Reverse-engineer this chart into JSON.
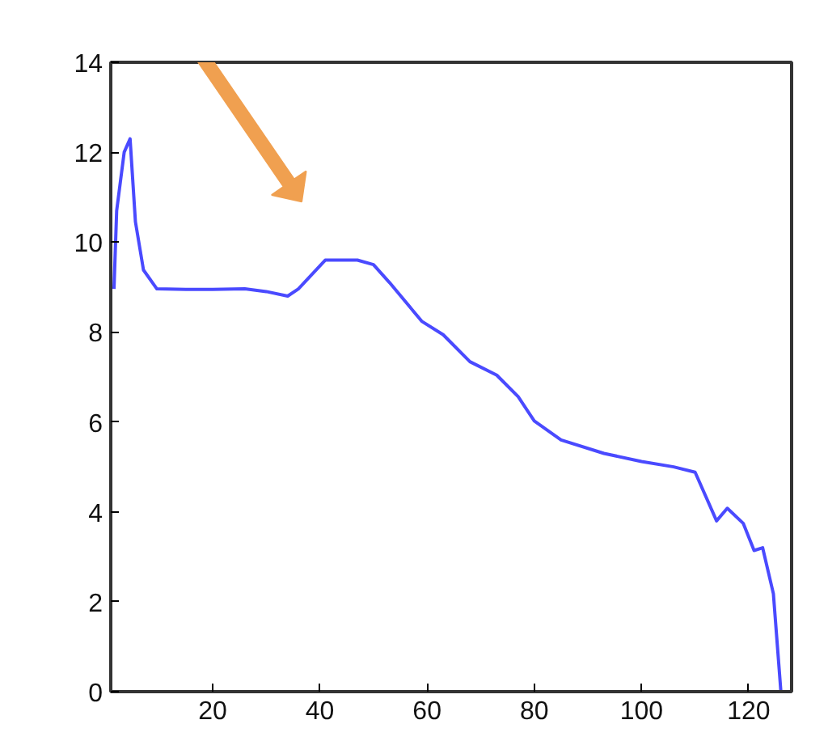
{
  "chart_data": {
    "type": "line",
    "x": [
      1.6,
      2.1,
      3.5,
      4.6,
      5.6,
      7.1,
      9.6,
      15,
      20,
      26,
      30,
      34,
      36,
      41,
      47,
      50,
      53,
      59,
      63,
      68,
      73,
      77,
      80,
      85,
      93,
      100,
      106,
      110,
      114,
      116,
      119,
      121,
      122.6,
      124.6,
      126
    ],
    "series": [
      {
        "color": "#4a4aff",
        "values": [
          8.96,
          10.7,
          12.0,
          12.3,
          10.45,
          9.38,
          8.96,
          8.95,
          8.95,
          8.96,
          8.9,
          8.8,
          8.96,
          9.6,
          9.6,
          9.5,
          9.1,
          8.24,
          7.94,
          7.34,
          7.04,
          6.56,
          6.02,
          5.6,
          5.3,
          5.12,
          5.0,
          4.88,
          3.8,
          4.08,
          3.74,
          3.14,
          3.2,
          2.18,
          0
        ]
      }
    ],
    "xlim": [
      1,
      128
    ],
    "ylim": [
      0,
      14
    ],
    "xticks": [
      20,
      40,
      60,
      80,
      100,
      120
    ],
    "yticks": [
      0,
      2,
      4,
      6,
      8,
      10,
      12,
      14
    ],
    "grid": false,
    "marker": "none",
    "line_style": "solid"
  }
}
